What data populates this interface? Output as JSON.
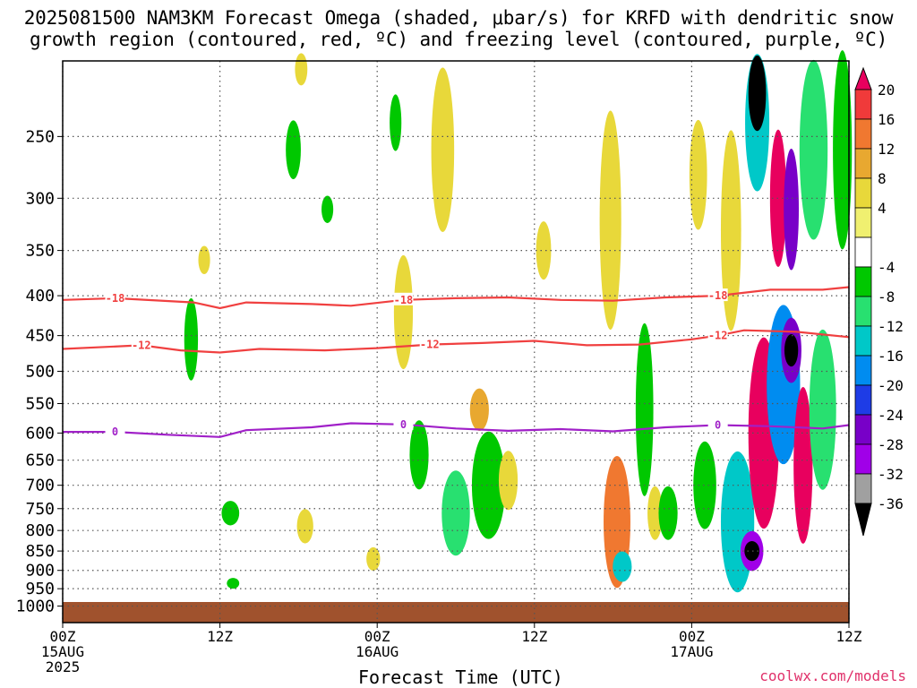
{
  "title_line1": "2025081500 NAM3KM Forecast Omega (shaded, μbar/s) for KRFD with dendritic snow",
  "title_line2": "growth region (contoured, red, ºC) and freezing level (contoured, purple, ºC)",
  "credit": "coolwx.com/models",
  "chart_data": {
    "type": "heatmap",
    "title": "2025081500 NAM3KM Forecast Omega (shaded, μbar/s) for KRFD with dendritic snow growth region (contoured, red, ºC) and freezing level (contoured, purple, ºC)",
    "xlabel": "Forecast Time (UTC)",
    "ylabel": "",
    "x_ticks": [
      {
        "hour": 0,
        "lines": [
          "00Z",
          "15AUG",
          "2025"
        ]
      },
      {
        "hour": 12,
        "lines": [
          "12Z"
        ]
      },
      {
        "hour": 24,
        "lines": [
          "00Z",
          "16AUG"
        ]
      },
      {
        "hour": 36,
        "lines": [
          "12Z"
        ]
      },
      {
        "hour": 48,
        "lines": [
          "00Z",
          "17AUG"
        ]
      },
      {
        "hour": 60,
        "lines": [
          "12Z"
        ]
      }
    ],
    "xlim": [
      0,
      60
    ],
    "y_ticks": [
      250,
      300,
      350,
      400,
      450,
      500,
      550,
      600,
      650,
      700,
      750,
      800,
      850,
      900,
      950,
      1000
    ],
    "ylim_mb": [
      200,
      1050
    ],
    "y_scale": "log, inverted",
    "grid": true,
    "colorbar": {
      "levels": [
        "20",
        "16",
        "12",
        "8",
        "4",
        "-4",
        "-8",
        "-12",
        "-16",
        "-20",
        "-24",
        "-28",
        "-32",
        "-36"
      ],
      "colors": [
        "#e8005e",
        "#f03a3a",
        "#f07830",
        "#e8a830",
        "#e8d83a",
        "#f0f070",
        "#ffffff",
        "#00c800",
        "#28e070",
        "#00c8c8",
        "#008cf0",
        "#1e3ce6",
        "#7800c8",
        "#a000e8",
        "#a0a0a0",
        "#000000"
      ]
    },
    "contours": [
      {
        "name": "-18",
        "color": "#f04040",
        "labels": [
          "-18",
          "-18",
          "-18"
        ],
        "points": [
          [
            0,
            405
          ],
          [
            4,
            403
          ],
          [
            10,
            408
          ],
          [
            12,
            415
          ],
          [
            14,
            408
          ],
          [
            19,
            410
          ],
          [
            22,
            412
          ],
          [
            26,
            405
          ],
          [
            30,
            403
          ],
          [
            34,
            402
          ],
          [
            38,
            405
          ],
          [
            42,
            406
          ],
          [
            46,
            402
          ],
          [
            50,
            400
          ],
          [
            54,
            393
          ],
          [
            58,
            393
          ],
          [
            60,
            390
          ]
        ]
      },
      {
        "name": "-12",
        "color": "#f04040",
        "labels": [
          "-12",
          "-12",
          "-12"
        ],
        "points": [
          [
            0,
            468
          ],
          [
            6,
            463
          ],
          [
            9,
            470
          ],
          [
            12,
            473
          ],
          [
            15,
            468
          ],
          [
            20,
            470
          ],
          [
            24,
            467
          ],
          [
            28,
            462
          ],
          [
            32,
            460
          ],
          [
            36,
            457
          ],
          [
            40,
            463
          ],
          [
            44,
            462
          ],
          [
            48,
            455
          ],
          [
            50,
            450
          ],
          [
            52,
            443
          ],
          [
            56,
            445
          ],
          [
            60,
            452
          ]
        ]
      },
      {
        "name": "0",
        "color": "#a020c8",
        "labels": [
          "0",
          "0",
          "0"
        ],
        "points": [
          [
            0,
            598
          ],
          [
            4,
            598
          ],
          [
            8,
            603
          ],
          [
            12,
            607
          ],
          [
            14,
            595
          ],
          [
            19,
            590
          ],
          [
            22,
            583
          ],
          [
            26,
            585
          ],
          [
            30,
            592
          ],
          [
            34,
            596
          ],
          [
            38,
            593
          ],
          [
            42,
            597
          ],
          [
            46,
            590
          ],
          [
            50,
            586
          ],
          [
            54,
            588
          ],
          [
            58,
            592
          ],
          [
            60,
            586
          ]
        ]
      }
    ],
    "omega_cells": [
      {
        "t": 9.8,
        "p": 455,
        "dt": 0.5,
        "dp": 110,
        "v": -6
      },
      {
        "t": 10.8,
        "p": 360,
        "dt": 0.35,
        "dp": 30,
        "v": 6
      },
      {
        "t": 12.8,
        "p": 760,
        "dt": 0.8,
        "dp": 55,
        "v": -6
      },
      {
        "t": 13.0,
        "p": 935,
        "dt": 0.4,
        "dp": 20,
        "v": -6
      },
      {
        "t": 17.6,
        "p": 260,
        "dt": 0.6,
        "dp": 45,
        "v": -6
      },
      {
        "t": 18.2,
        "p": 205,
        "dt": 0.4,
        "dp": 30,
        "v": 6
      },
      {
        "t": 18.5,
        "p": 790,
        "dt": 0.7,
        "dp": 80,
        "v": 6
      },
      {
        "t": 20.2,
        "p": 310,
        "dt": 0.35,
        "dp": 25,
        "v": -6
      },
      {
        "t": 23.7,
        "p": 870,
        "dt": 0.5,
        "dp": 60,
        "v": 6
      },
      {
        "t": 25.4,
        "p": 240,
        "dt": 0.35,
        "dp": 40,
        "v": -6
      },
      {
        "t": 26.0,
        "p": 420,
        "dt": 0.9,
        "dp": 140,
        "v": 6
      },
      {
        "t": 27.2,
        "p": 640,
        "dt": 0.9,
        "dp": 130,
        "v": -6
      },
      {
        "t": 29.0,
        "p": 260,
        "dt": 1.2,
        "dp": 130,
        "v": 6
      },
      {
        "t": 30.0,
        "p": 760,
        "dt": 1.6,
        "dp": 190,
        "v": -8
      },
      {
        "t": 31.8,
        "p": 560,
        "dt": 0.9,
        "dp": 70,
        "v": 9
      },
      {
        "t": 32.5,
        "p": 700,
        "dt": 2.0,
        "dp": 220,
        "v": -6
      },
      {
        "t": 34.0,
        "p": 690,
        "dt": 0.9,
        "dp": 120,
        "v": 6
      },
      {
        "t": 36.7,
        "p": 350,
        "dt": 0.6,
        "dp": 60,
        "v": 6
      },
      {
        "t": 42.3,
        "p": 780,
        "dt": 1.5,
        "dp": 300,
        "v": 14
      },
      {
        "t": 41.8,
        "p": 320,
        "dt": 1.1,
        "dp": 200,
        "v": 7
      },
      {
        "t": 42.7,
        "p": 890,
        "dt": 0.9,
        "dp": 80,
        "v": -13
      },
      {
        "t": 44.4,
        "p": 560,
        "dt": 0.8,
        "dp": 280,
        "v": -7
      },
      {
        "t": 45.2,
        "p": 760,
        "dt": 0.6,
        "dp": 120,
        "v": 6
      },
      {
        "t": 46.2,
        "p": 760,
        "dt": 0.9,
        "dp": 120,
        "v": -6
      },
      {
        "t": 48.5,
        "p": 280,
        "dt": 0.8,
        "dp": 90,
        "v": 6
      },
      {
        "t": 49.0,
        "p": 700,
        "dt": 1.2,
        "dp": 180,
        "v": -6
      },
      {
        "t": 51.5,
        "p": 780,
        "dt": 2.0,
        "dp": 320,
        "v": -14
      },
      {
        "t": 52.6,
        "p": 850,
        "dt": 1.2,
        "dp": 100,
        "v": -30
      },
      {
        "t": 52.6,
        "p": 850,
        "dt": 0.6,
        "dp": 50,
        "v": -40
      },
      {
        "t": 53.5,
        "p": 600,
        "dt": 1.8,
        "dp": 330,
        "v": 22
      },
      {
        "t": 55.0,
        "p": 520,
        "dt": 2.0,
        "dp": 240,
        "v": -16
      },
      {
        "t": 55.6,
        "p": 470,
        "dt": 1.0,
        "dp": 90,
        "v": -26
      },
      {
        "t": 55.6,
        "p": 470,
        "dt": 0.5,
        "dp": 45,
        "v": -40
      },
      {
        "t": 56.5,
        "p": 660,
        "dt": 0.9,
        "dp": 300,
        "v": 22
      },
      {
        "t": 58.0,
        "p": 560,
        "dt": 1.5,
        "dp": 260,
        "v": -10
      },
      {
        "t": 53.0,
        "p": 240,
        "dt": 1.3,
        "dp": 120,
        "v": -14
      },
      {
        "t": 53.0,
        "p": 220,
        "dt": 0.8,
        "dp": 60,
        "v": -40
      },
      {
        "t": 54.6,
        "p": 300,
        "dt": 0.7,
        "dp": 120,
        "v": 22
      },
      {
        "t": 55.6,
        "p": 310,
        "dt": 0.6,
        "dp": 110,
        "v": -26
      },
      {
        "t": 57.3,
        "p": 260,
        "dt": 1.6,
        "dp": 160,
        "v": -10
      },
      {
        "t": 59.5,
        "p": 260,
        "dt": 0.9,
        "dp": 200,
        "v": -7
      },
      {
        "t": 51.0,
        "p": 330,
        "dt": 1.0,
        "dp": 190,
        "v": 6
      }
    ]
  }
}
